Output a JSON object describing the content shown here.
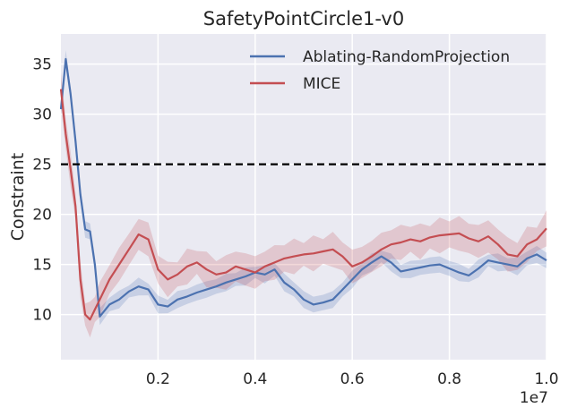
{
  "chart_data": {
    "type": "line",
    "title": "SafetyPointCircle1-v0",
    "xlabel": "",
    "ylabel": "Constraint",
    "x_offset_label": "1e7",
    "xlim": [
      0.0,
      1.0
    ],
    "ylim": [
      5.5,
      38
    ],
    "xticks": [
      0.2,
      0.4,
      0.6,
      0.8,
      1.0
    ],
    "xtick_labels": [
      "0.2",
      "0.4",
      "0.6",
      "0.8",
      "1.0"
    ],
    "yticks": [
      10,
      15,
      20,
      25,
      30,
      35
    ],
    "ytick_labels": [
      "10",
      "15",
      "20",
      "25",
      "30",
      "35"
    ],
    "grid": true,
    "legend_position": "top-right",
    "threshold": {
      "value": 25,
      "style": "dashed",
      "color": "#000000"
    },
    "colors": {
      "background": "#EAEAF2",
      "grid": "#FFFFFF"
    },
    "series": [
      {
        "name": "Ablating-RandomProjection",
        "color": "#4C72B0",
        "x": [
          0.0,
          0.01,
          0.02,
          0.03,
          0.04,
          0.05,
          0.06,
          0.07,
          0.08,
          0.1,
          0.12,
          0.14,
          0.16,
          0.18,
          0.2,
          0.22,
          0.24,
          0.26,
          0.28,
          0.3,
          0.32,
          0.34,
          0.36,
          0.38,
          0.4,
          0.42,
          0.44,
          0.46,
          0.48,
          0.5,
          0.52,
          0.54,
          0.56,
          0.58,
          0.6,
          0.62,
          0.64,
          0.66,
          0.68,
          0.7,
          0.72,
          0.74,
          0.76,
          0.78,
          0.8,
          0.82,
          0.84,
          0.86,
          0.88,
          0.9,
          0.92,
          0.94,
          0.96,
          0.98,
          1.0
        ],
        "values": [
          30.5,
          35.5,
          32.0,
          27.3,
          22.0,
          18.5,
          18.3,
          15.0,
          9.8,
          11.0,
          11.5,
          12.3,
          12.8,
          12.5,
          11.0,
          10.8,
          11.5,
          11.8,
          12.2,
          12.5,
          12.8,
          13.2,
          13.5,
          13.8,
          14.2,
          14.0,
          14.5,
          13.2,
          12.5,
          11.5,
          11.0,
          11.2,
          11.5,
          12.5,
          13.5,
          14.5,
          15.2,
          15.8,
          15.2,
          14.3,
          14.5,
          14.7,
          14.9,
          15.0,
          14.6,
          14.2,
          13.9,
          14.6,
          15.4,
          15.2,
          15.0,
          14.8,
          15.6,
          16.0,
          15.4
        ],
        "band_half_width": 0.9
      },
      {
        "name": "MICE",
        "color": "#C44E52",
        "x": [
          0.0,
          0.01,
          0.02,
          0.03,
          0.04,
          0.05,
          0.06,
          0.07,
          0.08,
          0.1,
          0.12,
          0.14,
          0.16,
          0.18,
          0.2,
          0.22,
          0.24,
          0.26,
          0.28,
          0.3,
          0.32,
          0.34,
          0.36,
          0.38,
          0.4,
          0.42,
          0.44,
          0.46,
          0.48,
          0.5,
          0.52,
          0.54,
          0.56,
          0.58,
          0.6,
          0.62,
          0.64,
          0.66,
          0.68,
          0.7,
          0.72,
          0.74,
          0.76,
          0.78,
          0.8,
          0.82,
          0.84,
          0.86,
          0.88,
          0.9,
          0.92,
          0.94,
          0.96,
          0.98,
          1.0
        ],
        "values": [
          32.5,
          28.0,
          24.5,
          20.8,
          13.5,
          10.0,
          9.5,
          10.5,
          11.5,
          13.5,
          15.0,
          16.5,
          18.0,
          17.5,
          14.5,
          13.5,
          14.0,
          14.8,
          15.2,
          14.5,
          14.0,
          14.2,
          14.8,
          14.5,
          14.2,
          14.8,
          15.2,
          15.6,
          15.8,
          16.0,
          16.1,
          16.3,
          16.5,
          15.8,
          14.8,
          15.2,
          15.8,
          16.5,
          17.0,
          17.2,
          17.5,
          17.3,
          17.7,
          17.9,
          18.0,
          18.1,
          17.6,
          17.3,
          17.8,
          17.0,
          16.0,
          15.8,
          17.0,
          17.5,
          18.6
        ],
        "band_half_width": 1.8
      }
    ]
  }
}
